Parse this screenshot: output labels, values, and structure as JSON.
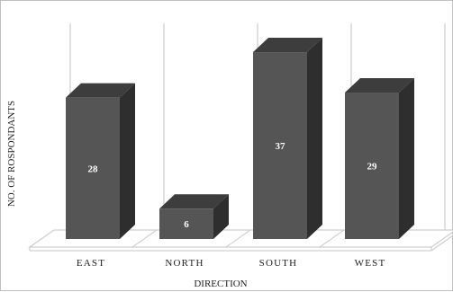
{
  "chart_data": {
    "type": "bar",
    "style": "3d-column",
    "categories": [
      "EAST",
      "NORTH",
      "SOUTH",
      "WEST"
    ],
    "values": [
      28,
      6,
      37,
      29
    ],
    "data_labels": [
      "28",
      "6",
      "37",
      "29"
    ],
    "title": "",
    "xlabel": "DIRECTION",
    "ylabel": "NO. OF ROSPONDANTS",
    "ylim": [
      0,
      40
    ],
    "grid": "vertical",
    "legend": "none",
    "colors": {
      "bar_front": "#555555",
      "bar_top": "#3d3d3d",
      "bar_side": "#2e2e2e",
      "grid": "#cfcfcf",
      "floor": "#cfcfcf",
      "label_text": "#222222",
      "value_text": "#ffffff"
    }
  }
}
